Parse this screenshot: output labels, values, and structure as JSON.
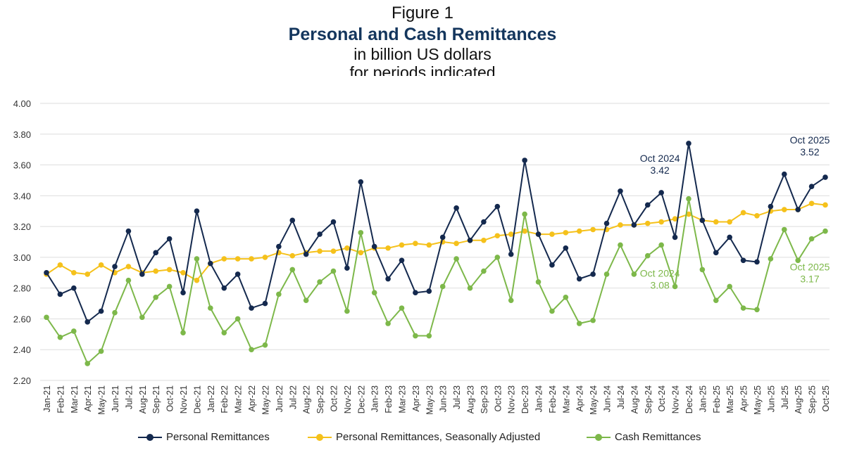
{
  "figure_label": "Figure 1",
  "title": "Personal and Cash Remittances",
  "subtitle1": "in billion US dollars",
  "subtitle2": "for periods indicated",
  "colors": {
    "personal": "#14294e",
    "seasonal": "#f5c11b",
    "cash": "#7db84a",
    "grid": "#dedede"
  },
  "chart_data": {
    "type": "line",
    "title": "Personal and Cash Remittances",
    "subtitle": "in billion US dollars for periods indicated",
    "ylim": [
      2.2,
      4.0
    ],
    "yticks": [
      "2.20",
      "2.40",
      "2.60",
      "2.80",
      "3.00",
      "3.20",
      "3.40",
      "3.60",
      "3.80",
      "4.00"
    ],
    "grid": true,
    "legend_position": "bottom",
    "categories": [
      "Jan-21",
      "Feb-21",
      "Mar-21",
      "Apr-21",
      "May-21",
      "Jun-21",
      "Jul-21",
      "Aug-21",
      "Sep-21",
      "Oct-21",
      "Nov-21",
      "Dec-21",
      "Jan-22",
      "Feb-22",
      "Mar-22",
      "Apr-22",
      "May-22",
      "Jun-22",
      "Jul-22",
      "Aug-22",
      "Sep-22",
      "Oct-22",
      "Nov-22",
      "Dec-22",
      "Jan-23",
      "Feb-23",
      "Mar-23",
      "Apr-23",
      "May-23",
      "Jun-23",
      "Jul-23",
      "Aug-23",
      "Sep-23",
      "Oct-23",
      "Nov-23",
      "Dec-23",
      "Jan-24",
      "Feb-24",
      "Mar-24",
      "Apr-24",
      "May-24",
      "Jun-24",
      "Jul-24",
      "Aug-24",
      "Sep-24",
      "Oct-24",
      "Nov-24",
      "Dec-24",
      "Jan-25",
      "Feb-25",
      "Mar-25",
      "Apr-25",
      "May-25",
      "Jun-25",
      "Jul-25",
      "Aug-25",
      "Sep-25",
      "Oct-25"
    ],
    "series": [
      {
        "name": "Personal Remittances",
        "key": "personal",
        "values": [
          2.9,
          2.76,
          2.8,
          2.58,
          2.65,
          2.94,
          3.17,
          2.89,
          3.03,
          3.12,
          2.77,
          3.3,
          2.96,
          2.8,
          2.89,
          2.67,
          2.7,
          3.07,
          3.24,
          3.02,
          3.15,
          3.23,
          2.93,
          3.49,
          3.07,
          2.86,
          2.98,
          2.77,
          2.78,
          3.13,
          3.32,
          3.11,
          3.23,
          3.33,
          3.02,
          3.63,
          3.15,
          2.95,
          3.06,
          2.86,
          2.89,
          3.22,
          3.43,
          3.21,
          3.34,
          3.42,
          3.13,
          3.74,
          3.24,
          3.03,
          3.13,
          2.98,
          2.97,
          3.33,
          3.54,
          3.31,
          3.46,
          3.52
        ]
      },
      {
        "name": "Personal Remittances, Seasonally Adjusted",
        "key": "seasonal",
        "values": [
          2.89,
          2.95,
          2.9,
          2.89,
          2.95,
          2.9,
          2.94,
          2.9,
          2.91,
          2.92,
          2.9,
          2.85,
          2.96,
          2.99,
          2.99,
          2.99,
          3.0,
          3.03,
          3.01,
          3.03,
          3.04,
          3.04,
          3.06,
          3.03,
          3.06,
          3.06,
          3.08,
          3.09,
          3.08,
          3.1,
          3.09,
          3.11,
          3.11,
          3.14,
          3.15,
          3.17,
          3.15,
          3.15,
          3.16,
          3.17,
          3.18,
          3.18,
          3.21,
          3.21,
          3.22,
          3.23,
          3.25,
          3.28,
          3.24,
          3.23,
          3.23,
          3.29,
          3.27,
          3.3,
          3.31,
          3.31,
          3.35,
          3.34
        ]
      },
      {
        "name": "Cash Remittances",
        "key": "cash",
        "values": [
          2.61,
          2.48,
          2.52,
          2.31,
          2.39,
          2.64,
          2.85,
          2.61,
          2.74,
          2.81,
          2.51,
          2.99,
          2.67,
          2.51,
          2.6,
          2.4,
          2.43,
          2.76,
          2.92,
          2.72,
          2.84,
          2.91,
          2.65,
          3.16,
          2.77,
          2.57,
          2.67,
          2.49,
          2.49,
          2.81,
          2.99,
          2.8,
          2.91,
          3.0,
          2.72,
          3.28,
          2.84,
          2.65,
          2.74,
          2.57,
          2.59,
          2.89,
          3.08,
          2.89,
          3.01,
          3.08,
          2.81,
          3.38,
          2.92,
          2.72,
          2.81,
          2.67,
          2.66,
          2.99,
          3.18,
          2.98,
          3.12,
          3.17
        ]
      }
    ],
    "annotations": [
      {
        "series": "personal",
        "index": 45,
        "line1": "Oct 2024",
        "line2": "3.42"
      },
      {
        "series": "personal",
        "index": 57,
        "line1": "Oct 2025",
        "line2": "3.52"
      },
      {
        "series": "cash",
        "index": 45,
        "line1": "Oct 2024",
        "line2": "3.08"
      },
      {
        "series": "cash",
        "index": 57,
        "line1": "Oct 2025",
        "line2": "3.17"
      }
    ]
  }
}
